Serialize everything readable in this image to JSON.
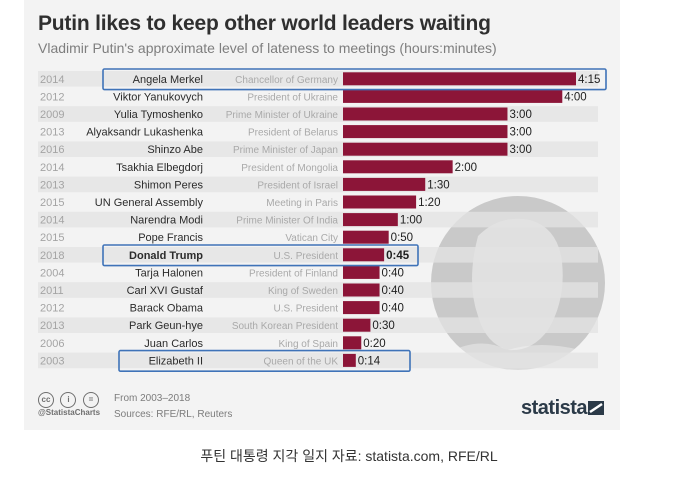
{
  "header": {
    "title": "Putin likes to keep other world leaders waiting",
    "subtitle": "Vladimir Putin's approximate level of lateness to meetings (hours:minutes)"
  },
  "chart_data": {
    "type": "bar",
    "orientation": "horizontal",
    "title": "Putin likes to keep other world leaders waiting",
    "subtitle": "Vladimir Putin's approximate level of lateness to meetings (hours:minutes)",
    "value_unit": "minutes",
    "rows": [
      {
        "year": "2014",
        "name": "Angela Merkel",
        "role": "Chancellor of Germany",
        "minutes": 255,
        "label": "4:15",
        "highlight": true
      },
      {
        "year": "2012",
        "name": "Viktor Yanukovych",
        "role": "President of Ukraine",
        "minutes": 240,
        "label": "4:00",
        "highlight": false
      },
      {
        "year": "2009",
        "name": "Yulia Tymoshenko",
        "role": "Prime Minister of Ukraine",
        "minutes": 180,
        "label": "3:00",
        "highlight": false
      },
      {
        "year": "2013",
        "name": "Alyaksandr Lukashenka",
        "role": "President of Belarus",
        "minutes": 180,
        "label": "3:00",
        "highlight": false
      },
      {
        "year": "2016",
        "name": "Shinzo Abe",
        "role": "Prime Minister of Japan",
        "minutes": 180,
        "label": "3:00",
        "highlight": false
      },
      {
        "year": "2014",
        "name": "Tsakhia Elbegdorj",
        "role": "President of Mongolia",
        "minutes": 120,
        "label": "2:00",
        "highlight": false
      },
      {
        "year": "2013",
        "name": "Shimon Peres",
        "role": "President of Israel",
        "minutes": 90,
        "label": "1:30",
        "highlight": false
      },
      {
        "year": "2015",
        "name": "UN General Assembly",
        "role": "Meeting in Paris",
        "minutes": 80,
        "label": "1:20",
        "highlight": false
      },
      {
        "year": "2014",
        "name": "Narendra Modi",
        "role": "Prime Minister Of India",
        "minutes": 60,
        "label": "1:00",
        "highlight": false
      },
      {
        "year": "2015",
        "name": "Pope Francis",
        "role": "Vatican City",
        "minutes": 50,
        "label": "0:50",
        "highlight": false
      },
      {
        "year": "2018",
        "name": "Donald Trump",
        "role": "U.S. President",
        "minutes": 45,
        "label": "0:45",
        "highlight": true
      },
      {
        "year": "2004",
        "name": "Tarja Halonen",
        "role": "President of Finland",
        "minutes": 40,
        "label": "0:40",
        "highlight": false
      },
      {
        "year": "2011",
        "name": "Carl XVI Gustaf",
        "role": "King of Sweden",
        "minutes": 40,
        "label": "0:40",
        "highlight": false
      },
      {
        "year": "2012",
        "name": "Barack Obama",
        "role": "U.S. President",
        "minutes": 40,
        "label": "0:40",
        "highlight": false
      },
      {
        "year": "2013",
        "name": "Park Geun-hye",
        "role": "South Korean President",
        "minutes": 30,
        "label": "0:30",
        "highlight": false
      },
      {
        "year": "2006",
        "name": "Juan Carlos",
        "role": "King of Spain",
        "minutes": 20,
        "label": "0:20",
        "highlight": false
      },
      {
        "year": "2003",
        "name": "Elizabeth II",
        "role": "Queen of the UK",
        "minutes": 14,
        "label": "0:14",
        "highlight": true
      }
    ],
    "xlim": [
      0,
      255
    ],
    "grid": false,
    "legend": "none"
  },
  "colors": {
    "bar": "#8c1538",
    "row_band": "#e3e3e3",
    "highlight_box": "#3f73b8",
    "silhouette": "#c9c9c9"
  },
  "footer": {
    "handle": "@StatistaCharts",
    "period": "From 2003–2018",
    "sources": "Sources: RFE/RL, Reuters",
    "brand": "statista",
    "license_icons": [
      "cc-icon",
      "attribution-icon",
      "no-derivatives-icon"
    ]
  },
  "caption": "푸틴 대통령 지각 일지 자료: statista.com, RFE/RL"
}
